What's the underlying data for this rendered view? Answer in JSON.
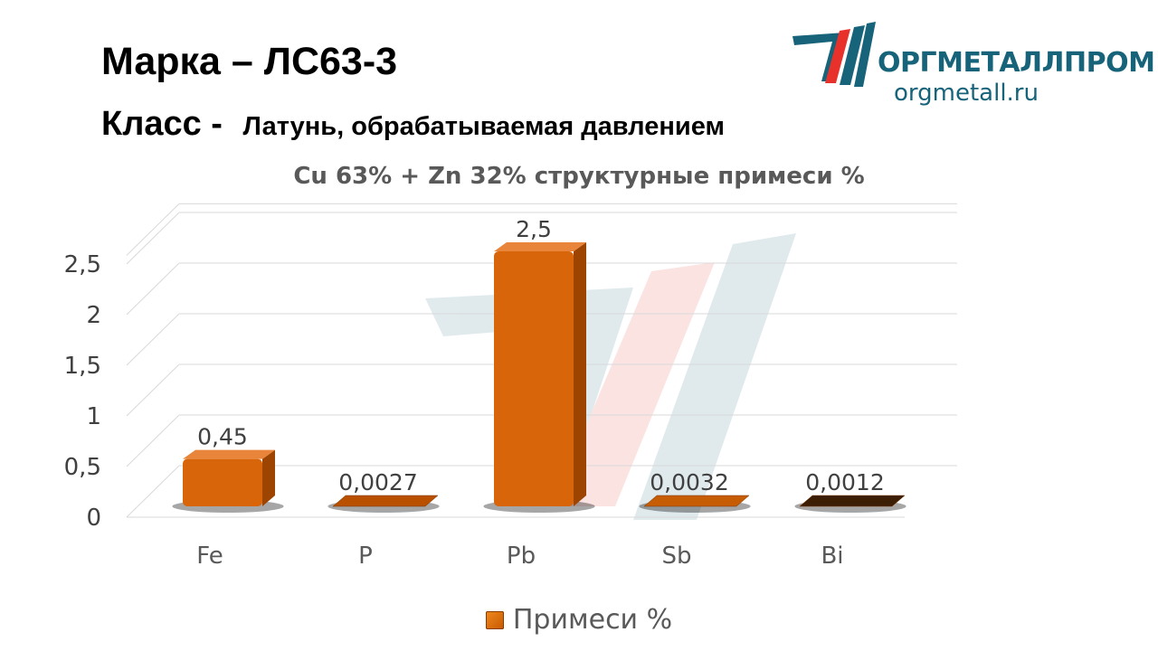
{
  "header": {
    "grade_label": "Марка",
    "grade_dash": "–",
    "grade_value": "ЛС63-3",
    "class_label": "Класс -",
    "class_value": "Латунь, обрабатываемая давлением"
  },
  "logo": {
    "name": "ОРГМЕТАЛЛПРОМ",
    "url": "orgmetall.ru",
    "colors": {
      "teal": "#17637a",
      "red": "#e8312b"
    }
  },
  "chart_data": {
    "type": "bar",
    "title": "Cu 63% + Zn 32% структурные примеси %",
    "categories": [
      "Fe",
      "P",
      "Pb",
      "Sb",
      "Bi"
    ],
    "series": [
      {
        "name": "Примеси %",
        "values": [
          0.45,
          0.0027,
          2.5,
          0.0032,
          0.0012
        ],
        "labels": [
          "0,45",
          "0,0027",
          "2,5",
          "0,0032",
          "0,0012"
        ]
      }
    ],
    "yticks": [
      "0",
      "0,5",
      "1",
      "1,5",
      "2",
      "2,5"
    ],
    "ylim": [
      0,
      2.8
    ],
    "grid": true,
    "legend": "bottom",
    "colors": {
      "bar": "#d8650a",
      "bar_top": "#e9853a",
      "bar_side": "#9c4400",
      "grid": "#d9d9d9",
      "text": "#404040"
    }
  }
}
